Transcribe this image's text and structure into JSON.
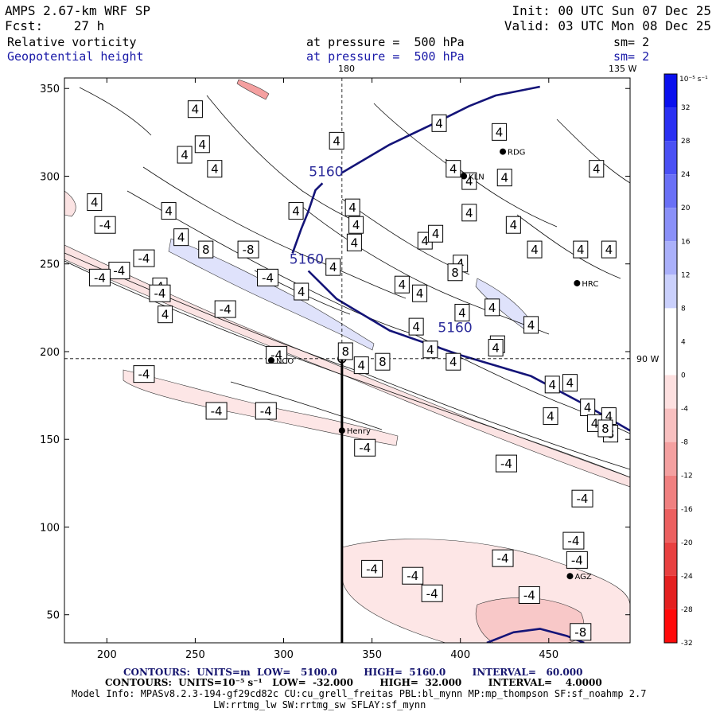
{
  "header": {
    "model": "AMPS 2.67-km WRF SP",
    "fcst": "Fcst:    27 h",
    "init": "Init: 00 UTC Sun 07 Dec 25",
    "valid": "Valid: 03 UTC Mon 08 Dec 25",
    "field1_name": "Relative vorticity",
    "field1_level": "at pressure =  500 hPa",
    "field1_sm": "sm= 2",
    "field2_name": "Geopotential height",
    "field2_level": "at pressure =  500 hPa",
    "field2_sm": "sm= 2"
  },
  "map_labels": {
    "lon180": "180",
    "lat135": "135 W",
    "lat90": "90 W"
  },
  "stations": [
    {
      "name": "NCO",
      "x": 293,
      "y": 195
    },
    {
      "name": "Henry",
      "x": 333,
      "y": 155
    },
    {
      "name": "KLN",
      "x": 402,
      "y": 300
    },
    {
      "name": "RDG",
      "x": 424,
      "y": 314
    },
    {
      "name": "HRC",
      "x": 466,
      "y": 239
    },
    {
      "name": "AGZ",
      "x": 462,
      "y": 72
    }
  ],
  "colorbar": {
    "unit": "10⁻⁵ s⁻¹",
    "ticks": [
      "32",
      "28",
      "24",
      "20",
      "16",
      "12",
      "8",
      "4",
      "0",
      "-4",
      "-8",
      "-12",
      "-16",
      "-20",
      "-24",
      "-28",
      "-32"
    ],
    "colors": [
      "#0a10ee",
      "#2a30f2",
      "#4a50f4",
      "#6a70f6",
      "#8a90f8",
      "#aab0fa",
      "#cad0fc",
      "#ffffff",
      "#ffffff",
      "#fde0e0",
      "#f8c0c0",
      "#f4a0a0",
      "#f08080",
      "#ec6060",
      "#e84040",
      "#e42020",
      "#ff0a0a"
    ]
  },
  "footer": {
    "line1_a": "CONTOURS:  UNITS=m  LOW=   5100.0        HIGH=  5160.0        INTERVAL=   60.000",
    "line2": "CONTOURS:  UNITS=10⁻⁵ s⁻¹   LOW=  -32.000        HIGH=  32.000        INTERVAL=    4.0000",
    "line3": "Model Info: MPASv8.2.3-194-gf29cd82c CU:cu_grell_freitas PBL:bl_mynn MP:mp_thompson SF:sf_noahmp 2.7",
    "line4": "LW:rrtmg_lw SW:rrtmg_sw SFLAY:sf_mynn"
  },
  "chart_data": {
    "type": "contour map",
    "fields": [
      "Relative vorticity",
      "Geopotential height"
    ],
    "x_ticks": [
      200,
      250,
      300,
      350,
      400,
      450
    ],
    "y_ticks": [
      50,
      100,
      150,
      200,
      250,
      300,
      350
    ],
    "xlim": [
      176,
      496
    ],
    "ylim": [
      34,
      356
    ],
    "reference_lines": {
      "x": 333,
      "y": 196
    },
    "section_line": {
      "x": 333,
      "y_from": 34,
      "y_to": 196
    },
    "height_contours": [
      {
        "label": "5160",
        "points": [
          [
            305,
            256
          ],
          [
            310,
            270
          ],
          [
            314,
            280
          ],
          [
            318,
            292
          ],
          [
            322,
            296
          ]
        ]
      },
      {
        "label": "5160",
        "points": [
          [
            314,
            246
          ],
          [
            330,
            230
          ],
          [
            360,
            212
          ],
          [
            400,
            198
          ],
          [
            440,
            186
          ],
          [
            470,
            170
          ],
          [
            496,
            155
          ]
        ]
      },
      {
        "label": "",
        "points": [
          [
            333,
            302
          ],
          [
            360,
            318
          ],
          [
            385,
            330
          ],
          [
            405,
            340
          ],
          [
            420,
            346
          ],
          [
            445,
            351
          ]
        ]
      },
      {
        "label": "",
        "points": [
          [
            415,
            34
          ],
          [
            430,
            40
          ],
          [
            445,
            42
          ],
          [
            460,
            38
          ],
          [
            470,
            34
          ]
        ]
      }
    ],
    "height_contour_labels": [
      {
        "text": "5160",
        "x": 324,
        "y": 300
      },
      {
        "text": "5160",
        "x": 313,
        "y": 250
      },
      {
        "text": "5160",
        "x": 397,
        "y": 211
      }
    ],
    "vorticity_labels": [
      {
        "v": 4,
        "x": 250,
        "y": 338
      },
      {
        "v": 4,
        "x": 254,
        "y": 318
      },
      {
        "v": 4,
        "x": 244,
        "y": 312
      },
      {
        "v": 4,
        "x": 261,
        "y": 304
      },
      {
        "v": 4,
        "x": 330,
        "y": 320
      },
      {
        "v": 4,
        "x": 388,
        "y": 330
      },
      {
        "v": 4,
        "x": 422,
        "y": 325
      },
      {
        "v": 4,
        "x": 396,
        "y": 304
      },
      {
        "v": 4,
        "x": 405,
        "y": 297
      },
      {
        "v": 4,
        "x": 405,
        "y": 279
      },
      {
        "v": 4,
        "x": 425,
        "y": 299
      },
      {
        "v": 4,
        "x": 430,
        "y": 272
      },
      {
        "v": 4,
        "x": 442,
        "y": 258
      },
      {
        "v": 4,
        "x": 468,
        "y": 258
      },
      {
        "v": 4,
        "x": 484,
        "y": 258
      },
      {
        "v": 4,
        "x": 477,
        "y": 304
      },
      {
        "v": 4,
        "x": 307,
        "y": 280
      },
      {
        "v": 4,
        "x": 339,
        "y": 282
      },
      {
        "v": 4,
        "x": 341,
        "y": 272
      },
      {
        "v": 4,
        "x": 380,
        "y": 263
      },
      {
        "v": 4,
        "x": 386,
        "y": 267
      },
      {
        "v": 4,
        "x": 400,
        "y": 250
      },
      {
        "v": 4,
        "x": 418,
        "y": 225
      },
      {
        "v": 4,
        "x": 440,
        "y": 215
      },
      {
        "v": 4,
        "x": 421,
        "y": 204
      },
      {
        "v": 4,
        "x": 375,
        "y": 214
      },
      {
        "v": 4,
        "x": 401,
        "y": 222
      },
      {
        "v": 4,
        "x": 377,
        "y": 233
      },
      {
        "v": 4,
        "x": 367,
        "y": 238
      },
      {
        "v": 4,
        "x": 328,
        "y": 248
      },
      {
        "v": 4,
        "x": 310,
        "y": 234
      },
      {
        "v": 4,
        "x": 235,
        "y": 280
      },
      {
        "v": 4,
        "x": 242,
        "y": 265
      },
      {
        "v": 4,
        "x": 193,
        "y": 285
      },
      {
        "v": 4,
        "x": 230,
        "y": 237
      },
      {
        "v": 4,
        "x": 233,
        "y": 221
      },
      {
        "v": 4,
        "x": 344,
        "y": 192
      },
      {
        "v": 4,
        "x": 383,
        "y": 201
      },
      {
        "v": 4,
        "x": 396,
        "y": 194
      },
      {
        "v": 4,
        "x": 420,
        "y": 202
      },
      {
        "v": 4,
        "x": 452,
        "y": 181
      },
      {
        "v": 4,
        "x": 462,
        "y": 182
      },
      {
        "v": 4,
        "x": 451,
        "y": 163
      },
      {
        "v": 4,
        "x": 472,
        "y": 168
      },
      {
        "v": 4,
        "x": 476,
        "y": 159
      },
      {
        "v": 4,
        "x": 484,
        "y": 163
      },
      {
        "v": 4,
        "x": 340,
        "y": 262
      },
      {
        "v": 8,
        "x": 256,
        "y": 258
      },
      {
        "v": 8,
        "x": 335,
        "y": 200
      },
      {
        "v": 8,
        "x": 356,
        "y": 194
      },
      {
        "v": 8,
        "x": 397,
        "y": 245
      },
      {
        "v": 8,
        "x": 485,
        "y": 153
      },
      {
        "v": 8,
        "x": 482,
        "y": 156
      },
      {
        "v": -8,
        "x": 280,
        "y": 258
      },
      {
        "v": -8,
        "x": 468,
        "y": 40
      },
      {
        "v": -4,
        "x": 199,
        "y": 272
      },
      {
        "v": -4,
        "x": 221,
        "y": 253
      },
      {
        "v": -4,
        "x": 207,
        "y": 246
      },
      {
        "v": -4,
        "x": 230,
        "y": 233
      },
      {
        "v": -4,
        "x": 267,
        "y": 224
      },
      {
        "v": -4,
        "x": 291,
        "y": 242
      },
      {
        "v": -4,
        "x": 296,
        "y": 198
      },
      {
        "v": -4,
        "x": 221,
        "y": 187
      },
      {
        "v": -4,
        "x": 262,
        "y": 166
      },
      {
        "v": -4,
        "x": 290,
        "y": 166
      },
      {
        "v": -4,
        "x": 346,
        "y": 145
      },
      {
        "v": -4,
        "x": 373,
        "y": 72
      },
      {
        "v": -4,
        "x": 350,
        "y": 76
      },
      {
        "v": -4,
        "x": 426,
        "y": 136
      },
      {
        "v": -4,
        "x": 424,
        "y": 82
      },
      {
        "v": -4,
        "x": 384,
        "y": 62
      },
      {
        "v": -4,
        "x": 439,
        "y": 61
      },
      {
        "v": -4,
        "x": 469,
        "y": 116
      },
      {
        "v": -4,
        "x": 464,
        "y": 92
      },
      {
        "v": -4,
        "x": 466,
        "y": 81
      },
      {
        "v": -4,
        "x": 196,
        "y": 242
      }
    ]
  }
}
